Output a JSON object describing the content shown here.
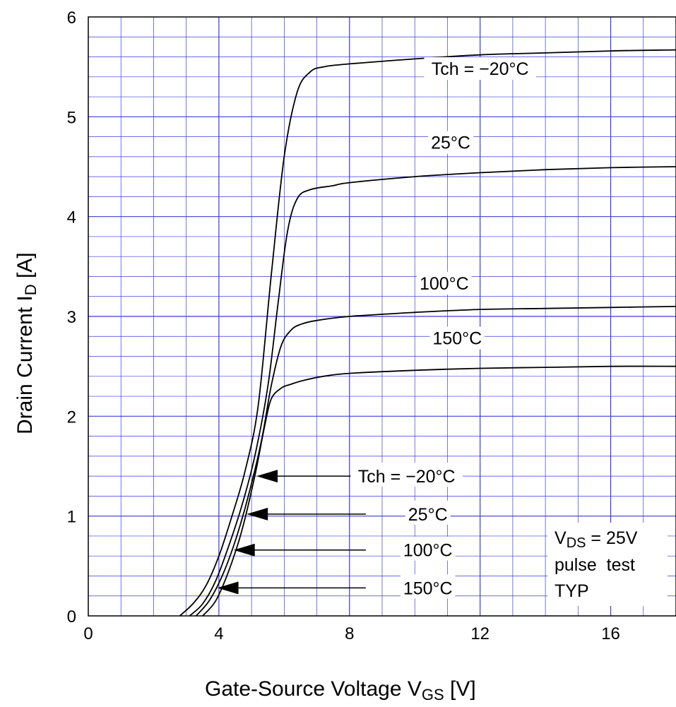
{
  "chart_data": {
    "type": "line",
    "xlabel": {
      "main": "Gate-Source Voltage  V",
      "sub": "GS",
      "unit": "  [V]"
    },
    "ylabel": {
      "main": "Drain Current  I",
      "sub": "D",
      "unit": "  [A]"
    },
    "xlim": [
      0,
      18
    ],
    "ylim": [
      0,
      6
    ],
    "x_ticks": [
      "0",
      "4",
      "8",
      "12",
      "16"
    ],
    "y_ticks": [
      "0",
      "1",
      "2",
      "3",
      "4",
      "5",
      "6"
    ],
    "grid": true,
    "series": [
      {
        "name": "Tch = −20°C",
        "x": [
          2.8,
          3.2,
          3.6,
          4.0,
          4.4,
          4.8,
          5.2,
          5.6,
          6.0,
          6.4,
          6.8,
          7.2,
          8,
          10,
          12,
          14,
          16,
          18
        ],
        "y": [
          0,
          0.12,
          0.3,
          0.6,
          1.0,
          1.45,
          2.1,
          3.4,
          4.6,
          5.25,
          5.45,
          5.5,
          5.53,
          5.58,
          5.62,
          5.64,
          5.66,
          5.67
        ]
      },
      {
        "name": "25°C",
        "x": [
          3.1,
          3.5,
          3.9,
          4.3,
          4.7,
          5.1,
          5.5,
          5.8,
          6.1,
          6.4,
          6.8,
          7.5,
          8,
          10,
          12,
          14,
          16,
          18
        ],
        "y": [
          0,
          0.12,
          0.35,
          0.7,
          1.1,
          1.6,
          2.3,
          3.1,
          3.85,
          4.18,
          4.27,
          4.31,
          4.34,
          4.4,
          4.44,
          4.47,
          4.49,
          4.5
        ]
      },
      {
        "name": "100°C",
        "x": [
          3.3,
          3.7,
          4.1,
          4.5,
          4.9,
          5.3,
          5.6,
          5.9,
          6.2,
          6.5,
          7.0,
          8,
          10,
          12,
          14,
          16,
          18
        ],
        "y": [
          0,
          0.15,
          0.4,
          0.75,
          1.2,
          1.75,
          2.3,
          2.7,
          2.86,
          2.92,
          2.96,
          3.0,
          3.04,
          3.07,
          3.08,
          3.09,
          3.1
        ]
      },
      {
        "name": "150°C",
        "x": [
          3.5,
          3.9,
          4.3,
          4.7,
          5.1,
          5.4,
          5.6,
          5.9,
          6.2,
          6.6,
          7.2,
          8,
          10,
          12,
          14,
          16,
          18
        ],
        "y": [
          0,
          0.15,
          0.45,
          0.85,
          1.4,
          1.9,
          2.17,
          2.28,
          2.32,
          2.36,
          2.4,
          2.43,
          2.46,
          2.48,
          2.49,
          2.5,
          2.5
        ]
      }
    ],
    "curve_labels": [
      "Tch = −20°C",
      "25°C",
      "100°C",
      "150°C"
    ],
    "arrow_labels": [
      {
        "text": "Tch = −20°C",
        "x_end": 5.15,
        "y": 1.4
      },
      {
        "text": "25°C",
        "x_end": 4.85,
        "y": 1.02
      },
      {
        "text": "100°C",
        "x_end": 4.45,
        "y": 0.66
      },
      {
        "text": "150°C",
        "x_end": 3.95,
        "y": 0.28
      }
    ],
    "conditions": {
      "vds": {
        "main": "V",
        "sub": "DS",
        "rest": " = 25V"
      },
      "line2": "pulse  test",
      "line3": "TYP"
    }
  }
}
